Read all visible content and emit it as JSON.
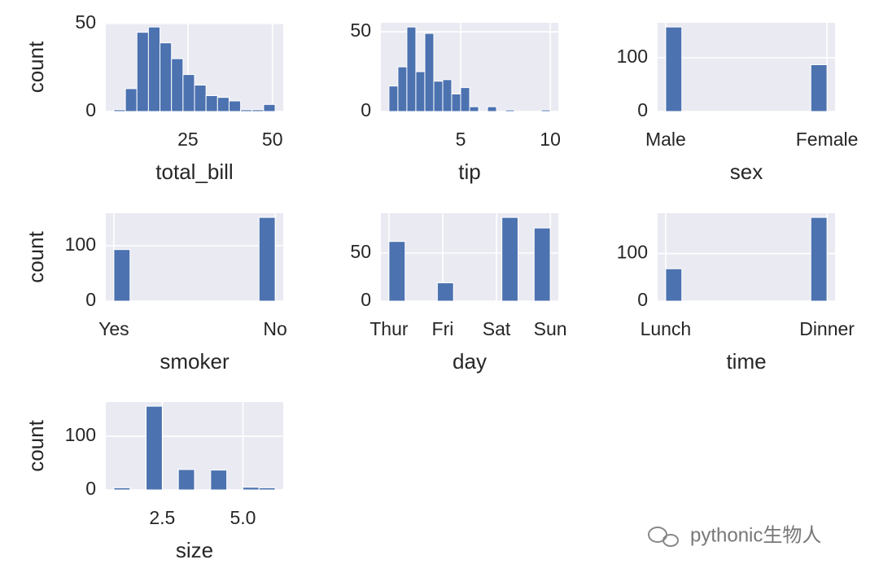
{
  "chart_data": [
    {
      "type": "histogram",
      "xlabel": "total_bill",
      "ylabel": "count",
      "color": "#4c72b0",
      "grid": true,
      "bins": [
        3.07,
        6.48,
        9.89,
        13.3,
        16.71,
        20.12,
        23.53,
        26.94,
        30.35,
        33.76,
        37.17,
        40.58,
        43.99,
        47.4,
        50.81
      ],
      "values": [
        1,
        13,
        45,
        48,
        39,
        30,
        21,
        15,
        9,
        8,
        6,
        1,
        1,
        4
      ],
      "xlim": [
        0.68,
        53.2
      ],
      "ylim": [
        0,
        50.4
      ],
      "xticks": [
        25,
        50
      ],
      "yticks": [
        0,
        50
      ]
    },
    {
      "type": "histogram",
      "xlabel": "tip",
      "color": "#4c72b0",
      "grid": true,
      "bins": [
        1,
        1.5,
        2,
        2.5,
        3,
        3.5,
        4,
        4.5,
        5,
        5.5,
        6,
        6.5,
        7,
        7.5,
        8,
        8.5,
        9,
        9.5,
        10
      ],
      "values": [
        16,
        28,
        53,
        25,
        49,
        19,
        20,
        11,
        15,
        3,
        0,
        3,
        0,
        1,
        0,
        0,
        0,
        1
      ],
      "xlim": [
        0.55,
        10.45
      ],
      "ylim": [
        0,
        55.65
      ],
      "xticks": [
        5,
        10
      ],
      "yticks": [
        0,
        50
      ]
    },
    {
      "type": "histogram",
      "xlabel": "sex",
      "color": "#4c72b0",
      "grid": true,
      "bins": [
        0,
        0.1,
        0.2,
        0.3,
        0.4,
        0.5,
        0.6,
        0.7,
        0.8,
        0.9,
        1
      ],
      "values": [
        157,
        0,
        0,
        0,
        0,
        0,
        0,
        0,
        0,
        87
      ],
      "xlim": [
        -0.05,
        1.05
      ],
      "ylim": [
        0,
        164.85
      ],
      "xticks": [
        {
          "value": 0,
          "label": "Male"
        },
        {
          "value": 1,
          "label": "Female"
        }
      ],
      "yticks": [
        0,
        100
      ]
    },
    {
      "type": "histogram",
      "xlabel": "smoker",
      "ylabel": "count",
      "color": "#4c72b0",
      "grid": true,
      "bins": [
        0,
        0.1,
        0.2,
        0.3,
        0.4,
        0.5,
        0.6,
        0.7,
        0.8,
        0.9,
        1
      ],
      "values": [
        93,
        0,
        0,
        0,
        0,
        0,
        0,
        0,
        0,
        151
      ],
      "xlim": [
        -0.05,
        1.05
      ],
      "ylim": [
        0,
        158.55
      ],
      "xticks": [
        {
          "value": 0,
          "label": "Yes"
        },
        {
          "value": 1,
          "label": "No"
        }
      ],
      "yticks": [
        0,
        100
      ]
    },
    {
      "type": "histogram",
      "xlabel": "day",
      "color": "#4c72b0",
      "grid": true,
      "bins": [
        0,
        0.3,
        0.6,
        0.9,
        1.2,
        1.5,
        1.8,
        2.1,
        2.4,
        2.7,
        3
      ],
      "values": [
        62,
        0,
        0,
        19,
        0,
        0,
        0,
        87,
        0,
        76
      ],
      "xlim": [
        -0.15,
        3.15
      ],
      "ylim": [
        0,
        91.35
      ],
      "xticks": [
        {
          "value": 0,
          "label": "Thur"
        },
        {
          "value": 1,
          "label": "Fri"
        },
        {
          "value": 2,
          "label": "Sat"
        },
        {
          "value": 3,
          "label": "Sun"
        }
      ],
      "yticks": [
        0,
        50
      ]
    },
    {
      "type": "histogram",
      "xlabel": "time",
      "color": "#4c72b0",
      "grid": true,
      "bins": [
        0,
        0.1,
        0.2,
        0.3,
        0.4,
        0.5,
        0.6,
        0.7,
        0.8,
        0.9,
        1
      ],
      "values": [
        68,
        0,
        0,
        0,
        0,
        0,
        0,
        0,
        0,
        176
      ],
      "xlim": [
        -0.05,
        1.05
      ],
      "ylim": [
        0,
        184.8
      ],
      "xticks": [
        {
          "value": 0,
          "label": "Lunch"
        },
        {
          "value": 1,
          "label": "Dinner"
        }
      ],
      "yticks": [
        0,
        100
      ]
    },
    {
      "type": "histogram",
      "xlabel": "size",
      "ylabel": "count",
      "color": "#4c72b0",
      "grid": true,
      "bins": [
        1,
        1.5,
        2,
        2.5,
        3,
        3.5,
        4,
        4.5,
        5,
        5.5,
        6
      ],
      "values": [
        4,
        0,
        156,
        0,
        38,
        0,
        37,
        0,
        5,
        4
      ],
      "xlim": [
        0.75,
        6.25
      ],
      "ylim": [
        0,
        163.8
      ],
      "xticks": [
        2.5,
        {
          "value": 5,
          "label": "5.0"
        }
      ],
      "yticks": [
        0,
        100
      ]
    }
  ],
  "watermark": "pythonic生物人"
}
